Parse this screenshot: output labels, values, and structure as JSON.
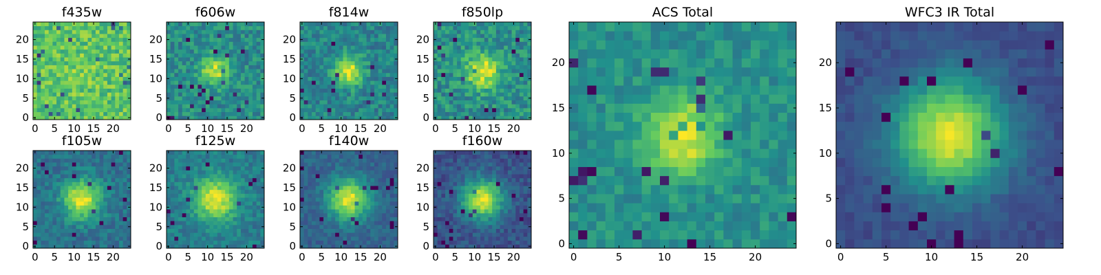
{
  "colormap": {
    "name": "viridis",
    "stops": [
      "#440154",
      "#3b528b",
      "#21918c",
      "#5ec962",
      "#fde725"
    ]
  },
  "chart_data": [
    {
      "type": "heatmap",
      "title": "f435w",
      "grid": [
        25,
        25
      ],
      "xlim": [
        0,
        24
      ],
      "ylim": [
        0,
        24
      ],
      "xticks": [
        "0",
        "5",
        "10",
        "15",
        "20"
      ],
      "yticks": [
        "0",
        "5",
        "10",
        "15",
        "20"
      ],
      "peak": {
        "x": 12,
        "y": 12,
        "amplitude": 0.05,
        "sigma": 4
      },
      "background": 0.72,
      "noise": 0.16
    },
    {
      "type": "heatmap",
      "title": "f606w",
      "grid": [
        25,
        25
      ],
      "xlim": [
        0,
        24
      ],
      "ylim": [
        0,
        24
      ],
      "xticks": [
        "0",
        "5",
        "10",
        "15",
        "20"
      ],
      "yticks": [
        "0",
        "5",
        "10",
        "15",
        "20"
      ],
      "peak": {
        "x": 12,
        "y": 12,
        "amplitude": 0.45,
        "sigma": 2.6
      },
      "background": 0.48,
      "noise": 0.14
    },
    {
      "type": "heatmap",
      "title": "f814w",
      "grid": [
        25,
        25
      ],
      "xlim": [
        0,
        24
      ],
      "ylim": [
        0,
        24
      ],
      "xticks": [
        "0",
        "5",
        "10",
        "15",
        "20"
      ],
      "yticks": [
        "0",
        "5",
        "10",
        "15",
        "20"
      ],
      "peak": {
        "x": 12,
        "y": 12,
        "amplitude": 0.5,
        "sigma": 2.6
      },
      "background": 0.45,
      "noise": 0.13
    },
    {
      "type": "heatmap",
      "title": "f850lp",
      "grid": [
        25,
        25
      ],
      "xlim": [
        0,
        24
      ],
      "ylim": [
        0,
        24
      ],
      "xticks": [
        "0",
        "5",
        "10",
        "15",
        "20"
      ],
      "yticks": [
        "0",
        "5",
        "10",
        "15",
        "20"
      ],
      "peak": {
        "x": 12,
        "y": 12,
        "amplitude": 0.5,
        "sigma": 3.0
      },
      "background": 0.5,
      "noise": 0.15
    },
    {
      "type": "heatmap",
      "title": "f105w",
      "grid": [
        25,
        25
      ],
      "xlim": [
        0,
        24
      ],
      "ylim": [
        0,
        24
      ],
      "xticks": [
        "0",
        "5",
        "10",
        "15",
        "20"
      ],
      "yticks": [
        "0",
        "5",
        "10",
        "15",
        "20"
      ],
      "peak": {
        "x": 12,
        "y": 12,
        "amplitude": 0.6,
        "sigma": 3.4
      },
      "background": 0.38,
      "noise": 0.1
    },
    {
      "type": "heatmap",
      "title": "f125w",
      "grid": [
        25,
        25
      ],
      "xlim": [
        0,
        24
      ],
      "ylim": [
        0,
        24
      ],
      "xticks": [
        "0",
        "5",
        "10",
        "15",
        "20"
      ],
      "yticks": [
        "0",
        "5",
        "10",
        "15",
        "20"
      ],
      "peak": {
        "x": 12,
        "y": 12,
        "amplitude": 0.55,
        "sigma": 3.8
      },
      "background": 0.42,
      "noise": 0.1
    },
    {
      "type": "heatmap",
      "title": "f140w",
      "grid": [
        25,
        25
      ],
      "xlim": [
        0,
        24
      ],
      "ylim": [
        0,
        24
      ],
      "xticks": [
        "0",
        "5",
        "10",
        "15",
        "20"
      ],
      "yticks": [
        "0",
        "5",
        "10",
        "15",
        "20"
      ],
      "peak": {
        "x": 12,
        "y": 12,
        "amplitude": 0.65,
        "sigma": 3.6
      },
      "background": 0.32,
      "noise": 0.08
    },
    {
      "type": "heatmap",
      "title": "f160w",
      "grid": [
        25,
        25
      ],
      "xlim": [
        0,
        24
      ],
      "ylim": [
        0,
        24
      ],
      "xticks": [
        "0",
        "5",
        "10",
        "15",
        "20"
      ],
      "yticks": [
        "0",
        "5",
        "10",
        "15",
        "20"
      ],
      "peak": {
        "x": 12,
        "y": 12,
        "amplitude": 0.7,
        "sigma": 3.6
      },
      "background": 0.26,
      "noise": 0.09
    },
    {
      "type": "heatmap",
      "title": "ACS Total",
      "grid": [
        25,
        25
      ],
      "xlim": [
        0,
        24
      ],
      "ylim": [
        0,
        24
      ],
      "xticks": [
        "0",
        "5",
        "10",
        "15",
        "20"
      ],
      "yticks": [
        "0",
        "5",
        "10",
        "15",
        "20"
      ],
      "peak": {
        "x": 12,
        "y": 12,
        "amplitude": 0.5,
        "sigma": 2.8
      },
      "background": 0.5,
      "noise": 0.1
    },
    {
      "type": "heatmap",
      "title": "WFC3 IR Total",
      "grid": [
        25,
        25
      ],
      "xlim": [
        0,
        24
      ],
      "ylim": [
        0,
        24
      ],
      "xticks": [
        "0",
        "5",
        "10",
        "15",
        "20"
      ],
      "yticks": [
        "0",
        "5",
        "10",
        "15",
        "20"
      ],
      "peak": {
        "x": 12,
        "y": 12,
        "amplitude": 0.72,
        "sigma": 4.2
      },
      "background": 0.24,
      "noise": 0.05
    }
  ]
}
